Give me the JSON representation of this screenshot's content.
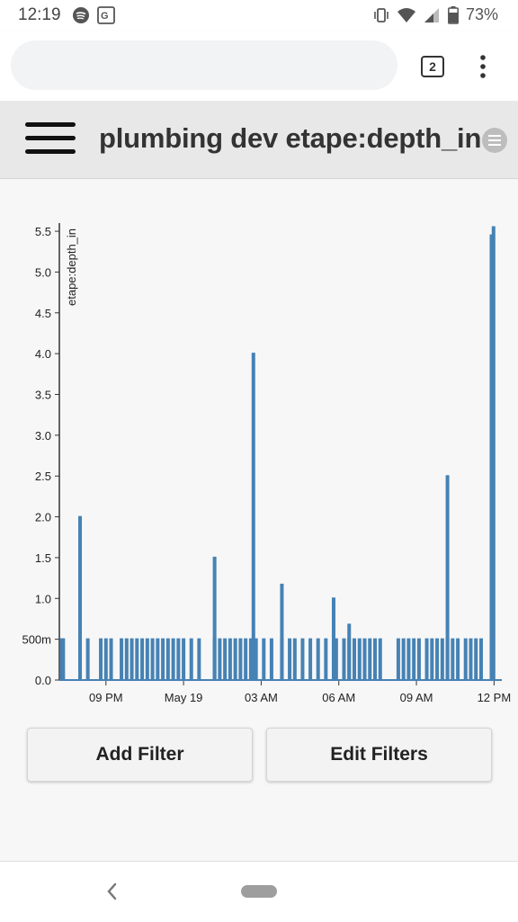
{
  "status_bar": {
    "time": "12:19",
    "battery": "73%",
    "left_icons": [
      "spotify-icon",
      "translate-icon"
    ],
    "right_icons": [
      "vibrate-icon",
      "wifi-icon",
      "signal-icon",
      "battery-icon"
    ]
  },
  "browser": {
    "url_value": "",
    "tab_count": "2"
  },
  "header": {
    "title": "plumbing dev etape:depth_in"
  },
  "buttons": {
    "add_filter": "Add Filter",
    "edit_filters": "Edit Filters"
  },
  "colors": {
    "line": "#4682b4",
    "header_bg": "#e8e8e8",
    "content_bg": "#f7f7f7"
  },
  "chart_data": {
    "type": "line",
    "ylabel": "etape:depth_in",
    "xlabel": "",
    "ylim": [
      0,
      5.6
    ],
    "yticks": [
      "0.0",
      "500m",
      "1.0",
      "1.5",
      "2.0",
      "2.5",
      "3.0",
      "3.5",
      "4.0",
      "4.5",
      "5.0",
      "5.5"
    ],
    "ytick_values": [
      0,
      0.5,
      1.0,
      1.5,
      2.0,
      2.5,
      3.0,
      3.5,
      4.0,
      4.5,
      5.0,
      5.5
    ],
    "xticks": [
      "09 PM",
      "May 19",
      "03 AM",
      "06 AM",
      "09 AM",
      "12 PM"
    ],
    "xtick_hours": [
      21,
      24,
      27,
      30,
      33,
      36
    ],
    "xlim_hours": [
      19.2,
      36.3
    ],
    "x_unit": "hours from May 18 00:00",
    "baseline_spikes_half": [
      19.3,
      19.35,
      20.0,
      20.3,
      20.8,
      21.0,
      21.2,
      21.6,
      21.8,
      22.0,
      22.2,
      22.4,
      22.6,
      22.8,
      23.0,
      23.2,
      23.4,
      23.6,
      23.8,
      24.0,
      24.3,
      24.6,
      25.2,
      25.4,
      25.6,
      25.8,
      26.0,
      26.2,
      26.4,
      26.6,
      26.8,
      27.1,
      27.4,
      27.8,
      28.1,
      28.3,
      28.6,
      28.9,
      29.2,
      29.5,
      29.9,
      30.2,
      30.4,
      30.6,
      30.8,
      31.0,
      31.2,
      31.4,
      31.6,
      32.3,
      32.5,
      32.7,
      32.9,
      33.1,
      33.4,
      33.6,
      33.8,
      34.0,
      34.2,
      34.4,
      34.6,
      34.9,
      35.1,
      35.3,
      35.5
    ],
    "peaks": [
      {
        "x": 20.0,
        "y": 2.0
      },
      {
        "x": 25.2,
        "y": 1.5
      },
      {
        "x": 26.7,
        "y": 4.0
      },
      {
        "x": 27.8,
        "y": 1.17
      },
      {
        "x": 29.8,
        "y": 1.0
      },
      {
        "x": 30.4,
        "y": 0.68
      },
      {
        "x": 34.2,
        "y": 2.5
      },
      {
        "x": 35.9,
        "y": 5.45
      },
      {
        "x": 35.98,
        "y": 5.55
      }
    ]
  }
}
